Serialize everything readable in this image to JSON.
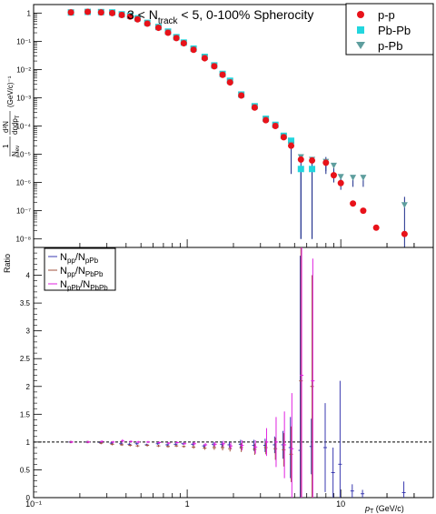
{
  "chart_data": [
    {
      "type": "scatter",
      "title_parts": {
        "pre": "3 < N",
        "sub": "track",
        "post": " < 5, 0-100% Spherocity"
      },
      "xlabel": {
        "main": "p",
        "sub": "T",
        "unit": " (GeV/c)"
      },
      "ylabel": {
        "num": "1",
        "den": "N",
        "den_sub": "ev",
        "dnum": "d²N",
        "dden": "dηdp",
        "dden_sub": "T",
        "unit": "(GeV/c)⁻¹"
      },
      "xscale": "log",
      "yscale": "log",
      "xlim": [
        0.1,
        40
      ],
      "ylim": [
        5e-09,
        2
      ],
      "xticks": [
        {
          "v": 0.1,
          "t": "10⁻¹"
        },
        {
          "v": 1,
          "t": "1"
        },
        {
          "v": 10,
          "t": "10"
        }
      ],
      "yticks": [
        {
          "v": 1,
          "t": "1"
        },
        {
          "v": 0.1,
          "t": "10⁻¹"
        },
        {
          "v": 0.01,
          "t": "10⁻²"
        },
        {
          "v": 0.001,
          "t": "10⁻³"
        },
        {
          "v": 0.0001,
          "t": "10⁻⁴"
        },
        {
          "v": 1e-05,
          "t": "10⁻⁵"
        },
        {
          "v": 1e-06,
          "t": "10⁻⁶"
        },
        {
          "v": 1e-07,
          "t": "10⁻⁷"
        },
        {
          "v": 1e-08,
          "t": "10⁻⁸"
        }
      ],
      "legend_position": "top-right",
      "series": [
        {
          "name": "p-p",
          "color": "#e8121a",
          "marker": "circle",
          "x": [
            0.175,
            0.225,
            0.275,
            0.325,
            0.375,
            0.425,
            0.475,
            0.55,
            0.65,
            0.75,
            0.85,
            0.95,
            1.1,
            1.3,
            1.5,
            1.7,
            1.9,
            2.25,
            2.75,
            3.25,
            3.75,
            4.25,
            4.75,
            5.5,
            6.5,
            8,
            9,
            10,
            12,
            14,
            17,
            26
          ],
          "y": [
            1.05,
            1.1,
            1.05,
            1.0,
            0.85,
            0.75,
            0.6,
            0.42,
            0.3,
            0.2,
            0.13,
            0.085,
            0.05,
            0.025,
            0.013,
            0.0065,
            0.0035,
            0.0012,
            0.00045,
            0.00016,
            0.0001,
            4e-05,
            2e-05,
            6.5e-06,
            6e-06,
            5e-06,
            1.8e-06,
            9.5e-07,
            1.8e-07,
            1e-07,
            2.5e-08,
            1.5e-08
          ],
          "err_lo": [
            0,
            0,
            0,
            0,
            0,
            0,
            0,
            0,
            0,
            0,
            0,
            0,
            0,
            0,
            0,
            0,
            0,
            0,
            0,
            0,
            0,
            0,
            0,
            0,
            0,
            3e-06,
            8e-07,
            4e-07,
            0,
            0,
            0,
            0
          ],
          "err_hi": [
            0,
            0,
            0,
            0,
            0,
            0,
            0,
            0,
            0,
            0,
            0,
            0,
            0,
            0,
            0,
            0,
            0,
            0,
            0,
            0,
            0,
            0,
            0,
            0,
            0,
            3e-06,
            8e-07,
            4e-07,
            0,
            0,
            0,
            0
          ]
        },
        {
          "name": "Pb-Pb",
          "color": "#22d6de",
          "marker": "square",
          "x": [
            0.175,
            0.225,
            0.275,
            0.325,
            0.375,
            0.425,
            0.475,
            0.55,
            0.65,
            0.75,
            0.85,
            0.95,
            1.1,
            1.3,
            1.5,
            1.7,
            1.9,
            2.25,
            2.75,
            3.25,
            3.75,
            4.25,
            4.75,
            5.5,
            6.5
          ],
          "y": [
            1.05,
            1.1,
            1.08,
            1.05,
            0.9,
            0.8,
            0.65,
            0.45,
            0.32,
            0.22,
            0.14,
            0.09,
            0.055,
            0.028,
            0.014,
            0.007,
            0.004,
            0.0013,
            0.0005,
            0.00018,
            0.00011,
            4.5e-05,
            3e-05,
            3e-06,
            3e-06
          ],
          "err_lo": [
            0,
            0,
            0,
            0,
            0,
            0,
            0,
            0,
            0,
            0,
            0,
            0,
            0,
            0,
            0,
            0,
            0,
            0,
            0,
            0,
            0,
            0,
            0,
            2.99e-06,
            2.99e-06
          ],
          "err_hi": [
            0,
            0,
            0,
            0,
            0,
            0,
            0,
            0,
            0,
            0,
            0,
            0,
            0,
            0,
            0,
            0,
            0,
            0,
            0,
            0,
            0,
            0,
            0,
            0,
            0
          ]
        },
        {
          "name": "p-Pb",
          "color": "#5e9e9e",
          "marker": "triangle-down",
          "x": [
            0.175,
            0.225,
            0.275,
            0.325,
            0.375,
            0.425,
            0.475,
            0.55,
            0.65,
            0.75,
            0.85,
            0.95,
            1.1,
            1.3,
            1.5,
            1.7,
            1.9,
            2.25,
            2.75,
            3.25,
            3.75,
            4.25,
            4.75,
            5.5,
            6.5,
            8,
            9,
            10,
            12,
            14,
            26
          ],
          "y": [
            1.05,
            1.1,
            1.06,
            1.02,
            0.88,
            0.78,
            0.62,
            0.44,
            0.31,
            0.21,
            0.135,
            0.088,
            0.052,
            0.027,
            0.0135,
            0.0068,
            0.0037,
            0.00125,
            0.00048,
            0.00017,
            0.000105,
            4.2e-05,
            2.2e-05,
            8e-06,
            6.5e-06,
            5.5e-06,
            4e-06,
            1.6e-06,
            1.5e-06,
            1.5e-06,
            1.6e-07
          ],
          "err_lo": [
            0,
            0,
            0,
            0,
            0,
            0,
            0,
            0,
            0,
            0,
            0,
            0,
            0,
            0,
            0,
            0,
            0,
            0,
            0,
            0,
            0,
            0,
            2e-05,
            7.99e-06,
            6.49e-06,
            3e-06,
            2.5e-06,
            8e-07,
            8e-07,
            8e-07,
            1.599e-07
          ],
          "err_hi": [
            0,
            0,
            0,
            0,
            0,
            0,
            0,
            0,
            0,
            0,
            0,
            0,
            0,
            0,
            0,
            0,
            0,
            0,
            0,
            0,
            0,
            0,
            0,
            0,
            0,
            0,
            0,
            0,
            0,
            0,
            1.5e-07
          ]
        }
      ]
    },
    {
      "type": "scatter",
      "ylabel": "Ratio",
      "xlabel": {
        "main": "p",
        "sub": "T",
        "unit": " (GeV/c)"
      },
      "xscale": "log",
      "xlim": [
        0.1,
        40
      ],
      "ylim": [
        0,
        4.5
      ],
      "xticks": [
        {
          "v": 0.1,
          "t": "10⁻¹"
        },
        {
          "v": 1,
          "t": "1"
        },
        {
          "v": 10,
          "t": "10"
        }
      ],
      "yticks": [
        0,
        0.5,
        1,
        1.5,
        2,
        2.5,
        3,
        3.5,
        4
      ],
      "reference_line": 1,
      "legend_position": "top-left",
      "series": [
        {
          "name_parts": [
            "N",
            "pp",
            "/N",
            "pPb"
          ],
          "color": "#3a3ab0",
          "x": [
            0.175,
            0.225,
            0.275,
            0.325,
            0.375,
            0.425,
            0.475,
            0.55,
            0.65,
            0.75,
            0.85,
            0.95,
            1.1,
            1.3,
            1.5,
            1.7,
            1.9,
            2.25,
            2.75,
            3.25,
            3.75,
            4.25,
            4.75,
            5.5,
            6.5,
            8,
            9,
            10,
            12,
            14,
            26
          ],
          "y": [
            1.0,
            1.0,
            0.99,
            0.98,
            0.97,
            0.96,
            0.97,
            0.95,
            0.97,
            0.95,
            0.96,
            0.97,
            0.96,
            0.93,
            0.96,
            0.96,
            0.95,
            0.96,
            0.94,
            0.94,
            0.95,
            0.95,
            0.9,
            0.85,
            0.92,
            0.9,
            0.45,
            0.6,
            0.12,
            0.07,
            0.09
          ],
          "err": [
            0.02,
            0.02,
            0.02,
            0.02,
            0.02,
            0.02,
            0.02,
            0.02,
            0.02,
            0.02,
            0.02,
            0.02,
            0.03,
            0.03,
            0.04,
            0.05,
            0.05,
            0.08,
            0.1,
            0.12,
            0.15,
            0.25,
            0.55,
            3.5,
            0.5,
            0.8,
            0.45,
            1.5,
            0.12,
            0.07,
            0.2
          ]
        },
        {
          "name_parts": [
            "N",
            "pp",
            "/N",
            "PbPb"
          ],
          "color": "#a0503c",
          "x": [
            0.175,
            0.225,
            0.275,
            0.325,
            0.375,
            0.425,
            0.475,
            0.55,
            0.65,
            0.75,
            0.85,
            0.95,
            1.1,
            1.3,
            1.5,
            1.7,
            1.9,
            2.25,
            2.75,
            3.25,
            3.75,
            4.25,
            4.75,
            5.5,
            6.5
          ],
          "y": [
            1.0,
            1.0,
            0.98,
            0.96,
            0.95,
            0.94,
            0.93,
            0.94,
            0.93,
            0.92,
            0.93,
            0.92,
            0.91,
            0.89,
            0.9,
            0.9,
            0.88,
            0.9,
            0.87,
            0.9,
            0.88,
            0.86,
            0.78,
            2.1,
            2.0
          ],
          "err": [
            0.02,
            0.02,
            0.02,
            0.02,
            0.02,
            0.02,
            0.02,
            0.02,
            0.02,
            0.02,
            0.02,
            0.02,
            0.03,
            0.03,
            0.04,
            0.05,
            0.05,
            0.08,
            0.1,
            0.12,
            0.2,
            0.3,
            0.5,
            2.4,
            2.0
          ]
        },
        {
          "name_parts": [
            "N",
            "pPb",
            "/N",
            "PbPb"
          ],
          "color": "#e020e0",
          "x": [
            0.175,
            0.225,
            0.275,
            0.325,
            0.375,
            0.425,
            0.475,
            0.55,
            0.65,
            0.75,
            0.85,
            0.95,
            1.1,
            1.3,
            1.5,
            1.7,
            1.9,
            2.25,
            2.75,
            3.25,
            3.75,
            4.25,
            4.75,
            5.5,
            6.5
          ],
          "y": [
            1.0,
            1.0,
            1.01,
            1.0,
            1.02,
            1.01,
            1.0,
            1.0,
            0.99,
            0.98,
            0.99,
            0.97,
            0.97,
            0.95,
            0.96,
            0.97,
            0.93,
            0.94,
            0.91,
            1.0,
            1.0,
            0.95,
            0.88,
            2.2,
            2.1
          ],
          "err": [
            0.02,
            0.02,
            0.02,
            0.02,
            0.03,
            0.02,
            0.02,
            0.02,
            0.02,
            0.02,
            0.02,
            0.02,
            0.03,
            0.03,
            0.04,
            0.05,
            0.06,
            0.09,
            0.12,
            0.25,
            0.45,
            0.6,
            1.0,
            2.3,
            2.2
          ]
        }
      ]
    }
  ]
}
